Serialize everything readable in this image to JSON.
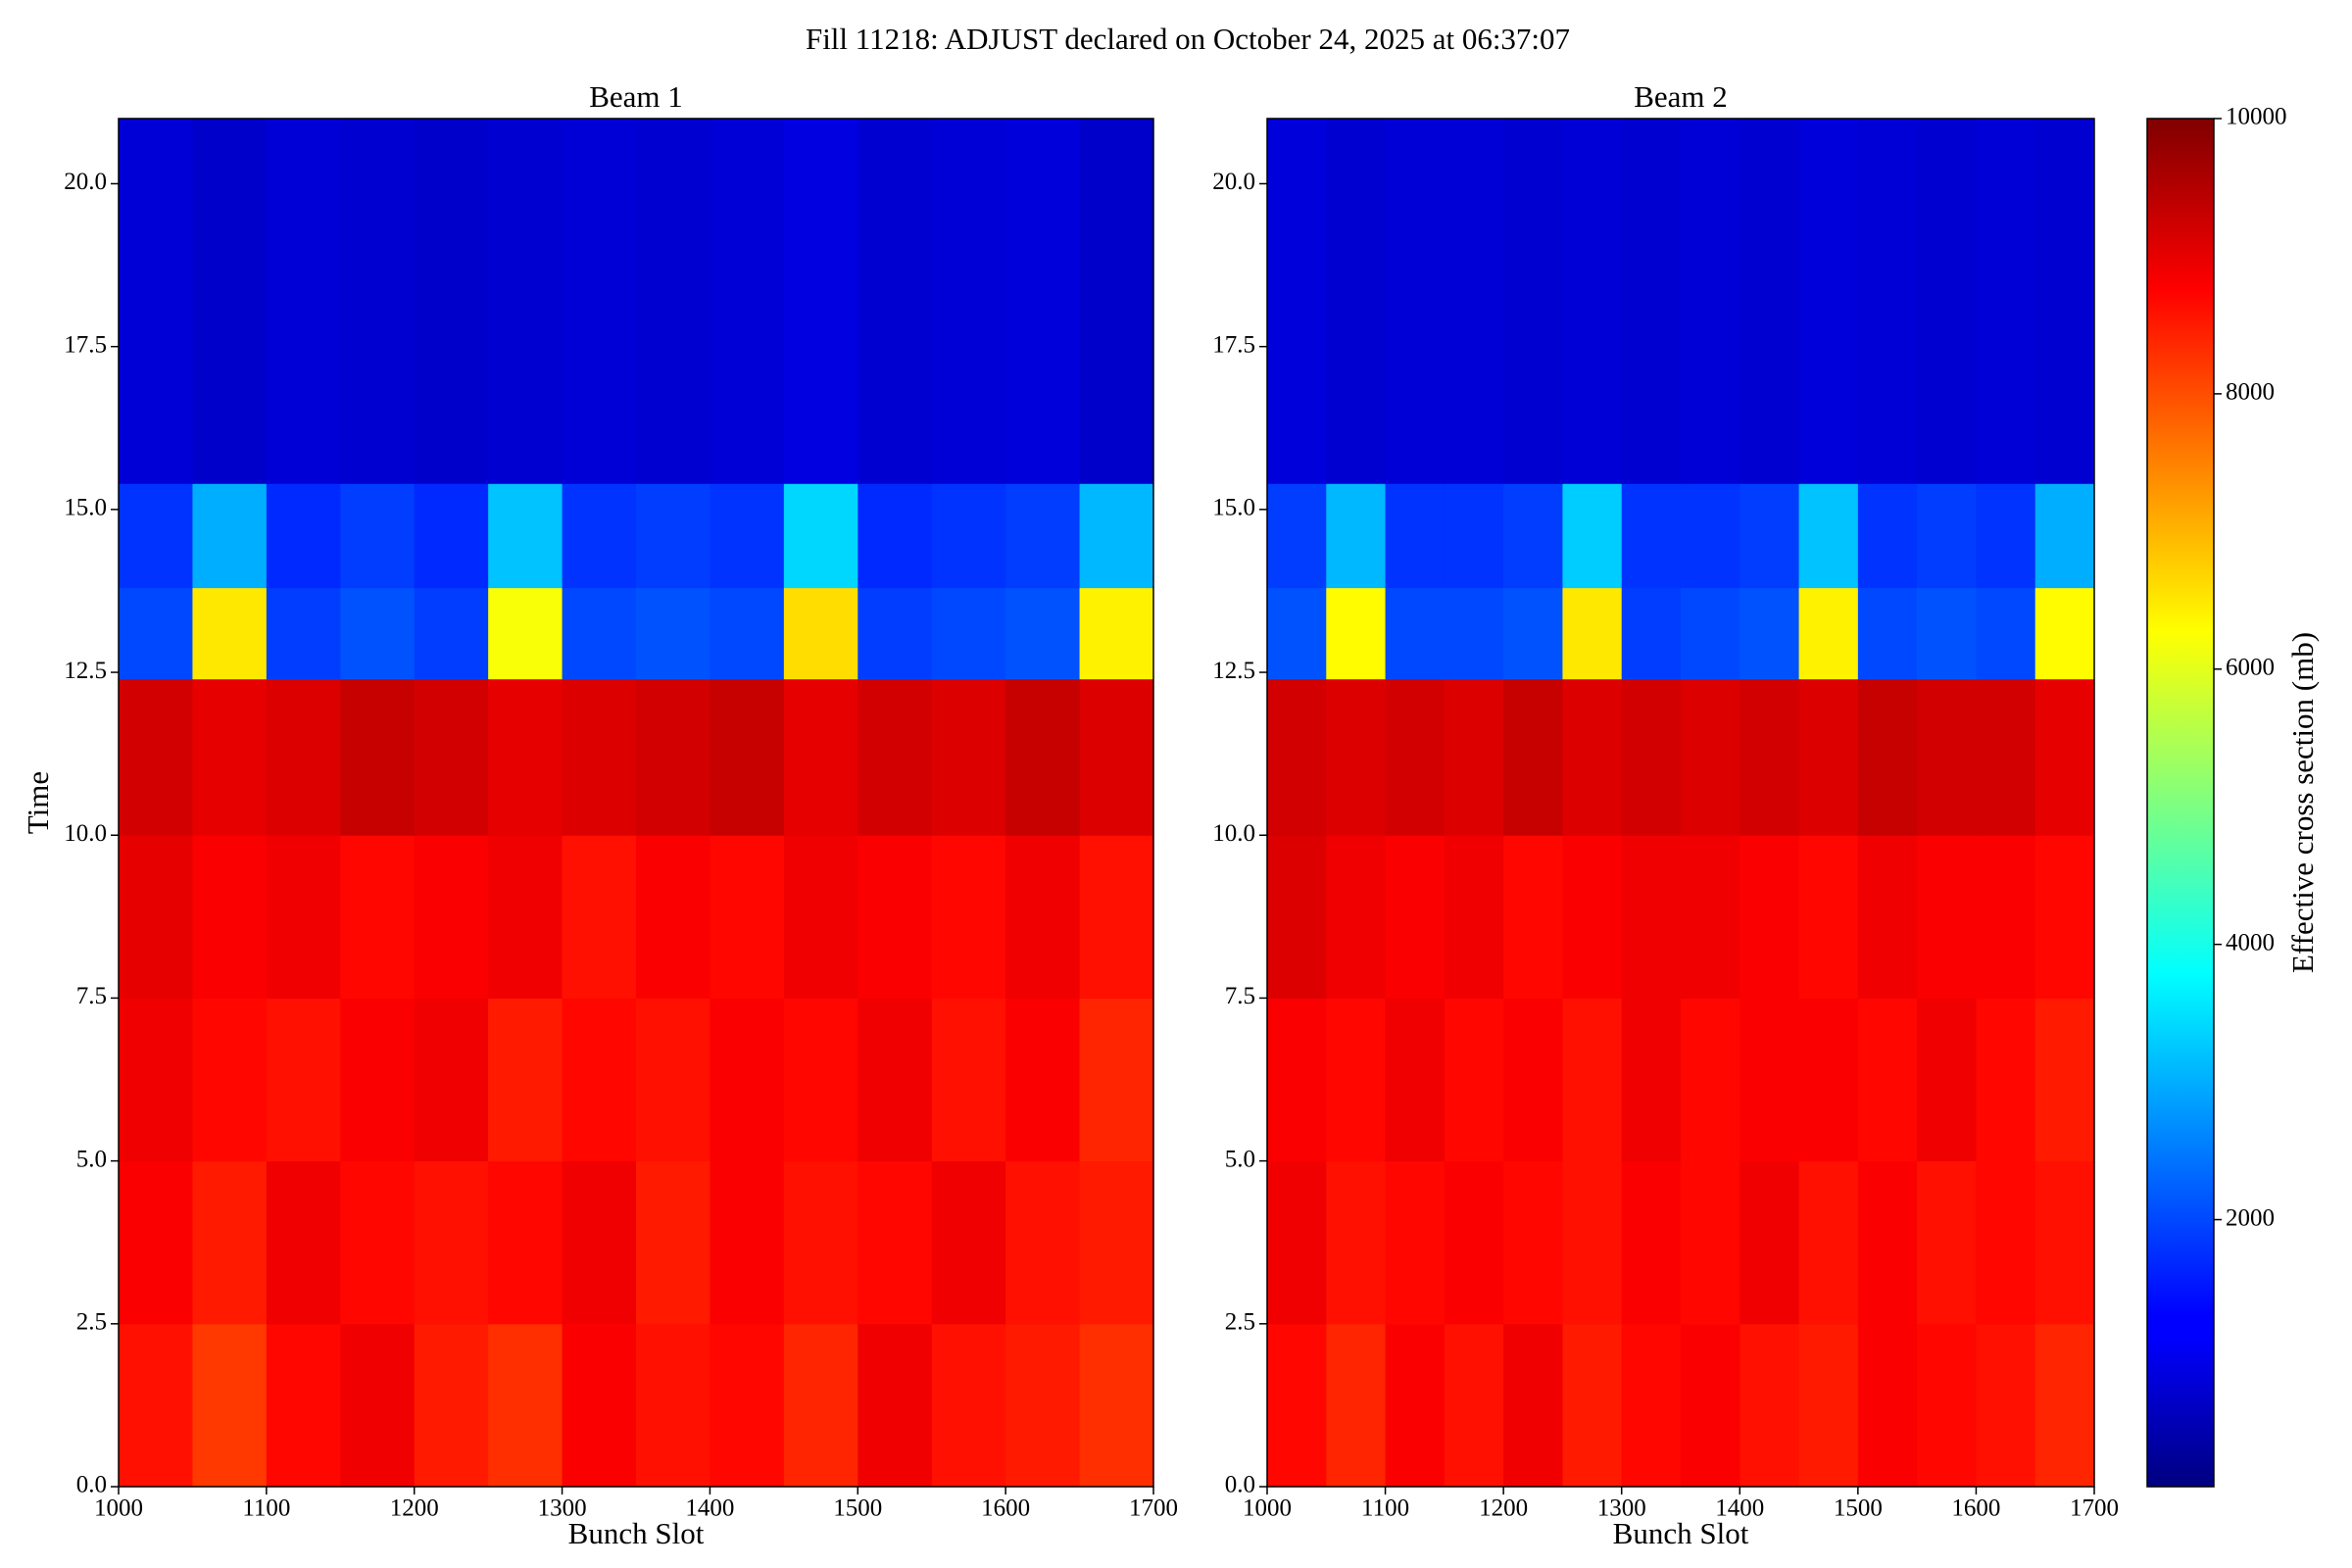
{
  "title": "Fill 11218: ADJUST declared on October 24, 2025 at 06:37:07",
  "chart_data": [
    {
      "type": "heatmap",
      "title": "Beam 1",
      "xlabel": "Bunch Slot",
      "ylabel": "Time",
      "xlim": [
        1000,
        1700
      ],
      "ylim": [
        0,
        21
      ],
      "xticks": [
        1000,
        1100,
        1200,
        1300,
        1400,
        1500,
        1600,
        1700
      ],
      "yticks": [
        {
          "value": 0,
          "label": "0.0"
        },
        2.5,
        {
          "value": 5,
          "label": "5.0"
        },
        7.5,
        {
          "value": 10,
          "label": "10.0"
        },
        12.5,
        {
          "value": 15,
          "label": "15.0"
        },
        17.5,
        {
          "value": 20,
          "label": "20.0"
        }
      ],
      "xedges": [
        1000,
        1050,
        1100,
        1150,
        1200,
        1250,
        1300,
        1350,
        1400,
        1450,
        1500,
        1550,
        1600,
        1650,
        1700
      ],
      "yedges": [
        0,
        2.5,
        5,
        7.5,
        10,
        12.4,
        13.8,
        15.4,
        21
      ],
      "z": [
        [
          8600,
          8200,
          8700,
          8900,
          8500,
          8300,
          8800,
          8600,
          8700,
          8400,
          8900,
          8600,
          8500,
          8300
        ],
        [
          8800,
          8500,
          8900,
          8700,
          8600,
          8700,
          8900,
          8500,
          8800,
          8600,
          8700,
          8900,
          8600,
          8500
        ],
        [
          8900,
          8700,
          8600,
          8800,
          8900,
          8500,
          8700,
          8600,
          8800,
          8700,
          8900,
          8600,
          8800,
          8400
        ],
        [
          9000,
          8800,
          8900,
          8700,
          8800,
          8900,
          8600,
          8800,
          8700,
          8900,
          8800,
          8700,
          8900,
          8600
        ],
        [
          9200,
          9000,
          9100,
          9300,
          9200,
          9000,
          9100,
          9200,
          9300,
          9000,
          9200,
          9100,
          9300,
          9100
        ],
        [
          2000,
          6500,
          1900,
          2100,
          1900,
          6200,
          2000,
          2100,
          2000,
          6600,
          1900,
          2000,
          2100,
          6400
        ],
        [
          1800,
          3000,
          1700,
          1900,
          1700,
          3200,
          1800,
          1900,
          1800,
          3400,
          1700,
          1800,
          1900,
          3100
        ],
        [
          900,
          800,
          900,
          850,
          800,
          850,
          900,
          850,
          900,
          1000,
          850,
          900,
          950,
          800
        ]
      ]
    },
    {
      "type": "heatmap",
      "title": "Beam 2",
      "xlabel": "Bunch Slot",
      "xlim": [
        1000,
        1700
      ],
      "ylim": [
        0,
        21
      ],
      "xticks": [
        1000,
        1100,
        1200,
        1300,
        1400,
        1500,
        1600,
        1700
      ],
      "yticks": [
        {
          "value": 0,
          "label": "0.0"
        },
        2.5,
        {
          "value": 5,
          "label": "5.0"
        },
        7.5,
        {
          "value": 10,
          "label": "10.0"
        },
        12.5,
        {
          "value": 15,
          "label": "15.0"
        },
        17.5,
        {
          "value": 20,
          "label": "20.0"
        }
      ],
      "xedges": [
        1000,
        1050,
        1100,
        1150,
        1200,
        1250,
        1300,
        1350,
        1400,
        1450,
        1500,
        1550,
        1600,
        1650,
        1700
      ],
      "yedges": [
        0,
        2.5,
        5,
        7.5,
        10,
        12.4,
        13.8,
        15.4,
        21
      ],
      "z": [
        [
          8700,
          8400,
          8800,
          8600,
          8900,
          8500,
          8700,
          8800,
          8600,
          8500,
          8800,
          8700,
          8600,
          8400
        ],
        [
          8900,
          8600,
          8700,
          8800,
          8700,
          8600,
          8800,
          8700,
          8900,
          8600,
          8800,
          8600,
          8700,
          8600
        ],
        [
          8800,
          8700,
          8900,
          8700,
          8800,
          8600,
          8900,
          8700,
          8800,
          8800,
          8700,
          8900,
          8700,
          8500
        ],
        [
          9100,
          8900,
          8800,
          8900,
          8700,
          8800,
          8900,
          8900,
          8800,
          8700,
          8900,
          8800,
          8800,
          8700
        ],
        [
          9200,
          9100,
          9200,
          9100,
          9300,
          9100,
          9200,
          9100,
          9200,
          9100,
          9300,
          9200,
          9200,
          9000
        ],
        [
          2100,
          6300,
          2000,
          2000,
          2100,
          6500,
          1900,
          2000,
          2100,
          6400,
          2000,
          2100,
          2000,
          6300
        ],
        [
          1900,
          3100,
          1800,
          1800,
          1900,
          3300,
          1800,
          1800,
          1900,
          3200,
          1800,
          1900,
          1800,
          3000
        ],
        [
          950,
          850,
          900,
          900,
          850,
          900,
          850,
          900,
          850,
          950,
          900,
          850,
          900,
          850
        ]
      ]
    }
  ],
  "colorbar": {
    "label": "Effective cross section (mb)",
    "colormap": "jet",
    "zlim": [
      60,
      10000
    ],
    "ticks": [
      2000,
      4000,
      6000,
      8000,
      10000
    ]
  }
}
